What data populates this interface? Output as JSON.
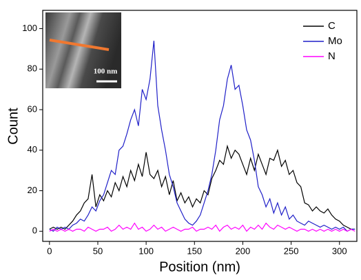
{
  "chart_data": {
    "type": "line",
    "xlabel": "Position (nm)",
    "ylabel": "Count",
    "inset_label": "100 nm",
    "x": [
      0,
      4,
      8,
      12,
      16,
      20,
      24,
      28,
      32,
      36,
      40,
      44,
      48,
      52,
      56,
      60,
      64,
      68,
      72,
      76,
      80,
      84,
      88,
      92,
      96,
      100,
      104,
      108,
      112,
      116,
      120,
      124,
      128,
      132,
      136,
      140,
      144,
      148,
      152,
      156,
      160,
      164,
      168,
      172,
      176,
      180,
      184,
      188,
      192,
      196,
      200,
      204,
      208,
      212,
      216,
      220,
      224,
      228,
      232,
      236,
      240,
      244,
      248,
      252,
      256,
      260,
      264,
      268,
      272,
      276,
      280,
      284,
      288,
      292,
      296,
      300,
      304,
      308,
      312,
      316
    ],
    "series": [
      {
        "name": "C",
        "color": "#000000",
        "values": [
          1,
          2,
          1,
          2,
          1,
          3,
          5,
          8,
          10,
          14,
          16,
          28,
          12,
          18,
          15,
          20,
          17,
          24,
          20,
          27,
          22,
          30,
          25,
          33,
          27,
          39,
          28,
          26,
          30,
          22,
          27,
          18,
          25,
          15,
          19,
          14,
          17,
          12,
          16,
          14,
          20,
          18,
          26,
          30,
          35,
          33,
          42,
          36,
          40,
          38,
          33,
          28,
          36,
          30,
          38,
          33,
          28,
          36,
          35,
          40,
          32,
          35,
          28,
          30,
          24,
          22,
          14,
          13,
          10,
          12,
          10,
          9,
          11,
          8,
          6,
          5,
          3,
          2,
          1,
          1
        ]
      },
      {
        "name": "Mo",
        "color": "#1f1fc8",
        "values": [
          1,
          0,
          2,
          1,
          2,
          1,
          3,
          4,
          6,
          5,
          8,
          12,
          10,
          15,
          18,
          24,
          30,
          28,
          40,
          42,
          48,
          55,
          60,
          52,
          70,
          65,
          75,
          94,
          62,
          50,
          40,
          28,
          22,
          14,
          10,
          6,
          4,
          3,
          5,
          8,
          14,
          20,
          28,
          40,
          55,
          62,
          75,
          82,
          70,
          72,
          62,
          50,
          45,
          35,
          22,
          18,
          12,
          16,
          9,
          14,
          8,
          12,
          6,
          8,
          5,
          4,
          3,
          5,
          4,
          3,
          2,
          3,
          2,
          1,
          2,
          1,
          2,
          0,
          1,
          1
        ]
      },
      {
        "name": "N",
        "color": "#ff00ff",
        "values": [
          0,
          1,
          0,
          1,
          0,
          1,
          0,
          1,
          1,
          0,
          2,
          1,
          0,
          1,
          1,
          2,
          0,
          1,
          3,
          1,
          2,
          1,
          4,
          1,
          2,
          0,
          1,
          3,
          1,
          2,
          0,
          1,
          2,
          1,
          0,
          1,
          1,
          2,
          0,
          1,
          1,
          2,
          1,
          3,
          0,
          2,
          3,
          1,
          2,
          1,
          3,
          0,
          2,
          1,
          3,
          1,
          4,
          2,
          1,
          3,
          2,
          1,
          2,
          1,
          0,
          1,
          1,
          0,
          1,
          0,
          1,
          0,
          1,
          0,
          1,
          0,
          1,
          0,
          1,
          0
        ]
      }
    ],
    "xlim": [
      -7,
      318
    ],
    "ylim": [
      -5,
      109
    ],
    "xticks": [
      0,
      50,
      100,
      150,
      200,
      250,
      300
    ],
    "yticks": [
      0,
      20,
      40,
      60,
      80,
      100
    ],
    "legend": "upper right"
  }
}
